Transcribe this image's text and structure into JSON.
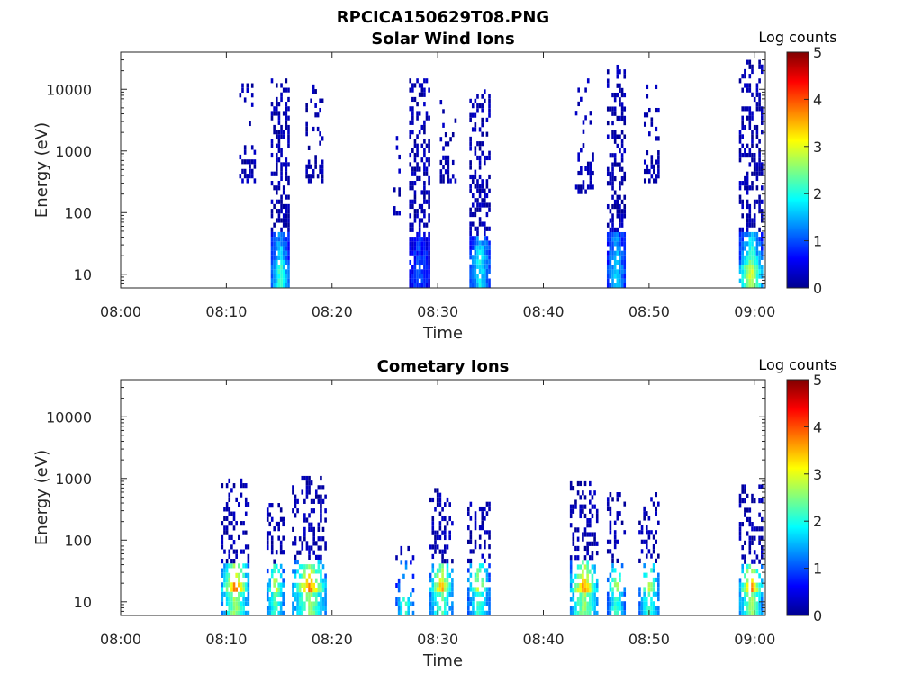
{
  "figure_title": "RPCICA150629T08.PNG",
  "colormap": [
    "#00008f",
    "#0000ff",
    "#0080ff",
    "#00ffff",
    "#80ff80",
    "#ffff00",
    "#ff8000",
    "#ff0000",
    "#800000"
  ],
  "chart_data": [
    {
      "type": "heatmap",
      "title": "Solar Wind Ions",
      "xlabel": "Time",
      "ylabel": "Energy (eV)",
      "x_ticks": [
        "08:00",
        "08:10",
        "08:20",
        "08:30",
        "08:40",
        "08:50",
        "09:00"
      ],
      "x_range_minutes": [
        0,
        61
      ],
      "y_ticks": [
        "10",
        "100",
        "1000",
        "10000"
      ],
      "y_tick_values": [
        10,
        100,
        1000,
        10000
      ],
      "y_range": [
        6,
        40000
      ],
      "y_scale": "log",
      "colorbar": {
        "label": "Log counts",
        "ticks": [
          "0",
          "1",
          "2",
          "3",
          "4",
          "5"
        ],
        "range": [
          0,
          5
        ]
      },
      "bursts": [
        {
          "t_start": 11.2,
          "t_end": 12.8,
          "e_min": 300,
          "e_max": 15000,
          "core_counts": 0.3,
          "low_core_counts": 0.3,
          "density": 0.22
        },
        {
          "t_start": 14.2,
          "t_end": 16.0,
          "e_min": 6,
          "e_max": 15000,
          "core_counts": 1.8,
          "low_core_counts": 2.0,
          "density": 0.65
        },
        {
          "t_start": 17.5,
          "t_end": 19.2,
          "e_min": 300,
          "e_max": 12000,
          "core_counts": 0.3,
          "low_core_counts": 0.3,
          "density": 0.25
        },
        {
          "t_start": 25.8,
          "t_end": 26.5,
          "e_min": 90,
          "e_max": 10000,
          "core_counts": 0.3,
          "low_core_counts": 0.3,
          "density": 0.08
        },
        {
          "t_start": 27.3,
          "t_end": 29.3,
          "e_min": 6,
          "e_max": 15000,
          "core_counts": 0.8,
          "low_core_counts": 0.8,
          "density": 0.6
        },
        {
          "t_start": 30.2,
          "t_end": 31.8,
          "e_min": 300,
          "e_max": 8000,
          "core_counts": 0.3,
          "low_core_counts": 0.3,
          "density": 0.25
        },
        {
          "t_start": 33.0,
          "t_end": 35.0,
          "e_min": 6,
          "e_max": 10000,
          "core_counts": 1.9,
          "low_core_counts": 1.6,
          "density": 0.6
        },
        {
          "t_start": 43.0,
          "t_end": 44.8,
          "e_min": 200,
          "e_max": 15000,
          "core_counts": 0.3,
          "low_core_counts": 0.3,
          "density": 0.2
        },
        {
          "t_start": 46.0,
          "t_end": 47.8,
          "e_min": 6,
          "e_max": 25000,
          "core_counts": 1.6,
          "low_core_counts": 1.5,
          "density": 0.6
        },
        {
          "t_start": 49.5,
          "t_end": 51.0,
          "e_min": 300,
          "e_max": 12000,
          "core_counts": 0.3,
          "low_core_counts": 0.3,
          "density": 0.2
        },
        {
          "t_start": 58.5,
          "t_end": 60.8,
          "e_min": 6,
          "e_max": 30000,
          "core_counts": 2.3,
          "low_core_counts": 2.8,
          "density": 0.55
        }
      ]
    },
    {
      "type": "heatmap",
      "title": "Cometary Ions",
      "xlabel": "Time",
      "ylabel": "Energy (eV)",
      "x_ticks": [
        "08:00",
        "08:10",
        "08:20",
        "08:30",
        "08:40",
        "08:50",
        "09:00"
      ],
      "x_range_minutes": [
        0,
        61
      ],
      "y_ticks": [
        "10",
        "100",
        "1000",
        "10000"
      ],
      "y_tick_values": [
        10,
        100,
        1000,
        10000
      ],
      "y_range": [
        6,
        40000
      ],
      "y_scale": "log",
      "colorbar": {
        "label": "Log counts",
        "ticks": [
          "0",
          "1",
          "2",
          "3",
          "4",
          "5"
        ],
        "range": [
          0,
          5
        ]
      },
      "bursts": [
        {
          "t_start": 9.5,
          "t_end": 12.2,
          "e_min": 6,
          "e_max": 1000,
          "core_counts": 4.0,
          "low_core_counts": 2.5,
          "density": 0.5
        },
        {
          "t_start": 13.8,
          "t_end": 15.5,
          "e_min": 6,
          "e_max": 400,
          "core_counts": 3.0,
          "low_core_counts": 2.2,
          "density": 0.5
        },
        {
          "t_start": 16.2,
          "t_end": 19.5,
          "e_min": 6,
          "e_max": 1100,
          "core_counts": 3.8,
          "low_core_counts": 2.5,
          "density": 0.5
        },
        {
          "t_start": 26.0,
          "t_end": 27.8,
          "e_min": 6,
          "e_max": 80,
          "core_counts": 1.5,
          "low_core_counts": 2.0,
          "density": 0.3
        },
        {
          "t_start": 29.2,
          "t_end": 31.5,
          "e_min": 6,
          "e_max": 700,
          "core_counts": 3.5,
          "low_core_counts": 2.2,
          "density": 0.5
        },
        {
          "t_start": 32.8,
          "t_end": 35.0,
          "e_min": 6,
          "e_max": 500,
          "core_counts": 3.0,
          "low_core_counts": 2.0,
          "density": 0.45
        },
        {
          "t_start": 42.5,
          "t_end": 45.2,
          "e_min": 6,
          "e_max": 900,
          "core_counts": 3.8,
          "low_core_counts": 2.5,
          "density": 0.5
        },
        {
          "t_start": 46.0,
          "t_end": 47.8,
          "e_min": 6,
          "e_max": 600,
          "core_counts": 2.8,
          "low_core_counts": 2.0,
          "density": 0.45
        },
        {
          "t_start": 49.0,
          "t_end": 51.0,
          "e_min": 6,
          "e_max": 600,
          "core_counts": 2.8,
          "low_core_counts": 2.0,
          "density": 0.45
        },
        {
          "t_start": 58.5,
          "t_end": 60.8,
          "e_min": 6,
          "e_max": 800,
          "core_counts": 3.8,
          "low_core_counts": 2.5,
          "density": 0.55
        }
      ]
    }
  ]
}
